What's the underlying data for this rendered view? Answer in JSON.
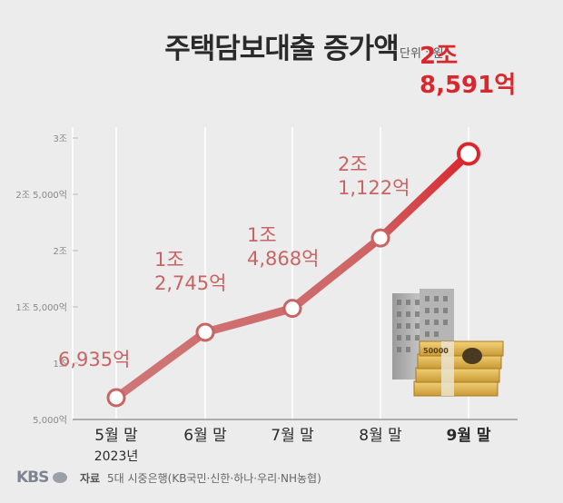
{
  "title": "주택담보대출 증가액",
  "unit": "단위 : 원",
  "chart_data": {
    "type": "line",
    "title": "주택담보대출 증가액",
    "categories": [
      "5월 말",
      "6월 말",
      "7월 말",
      "8월 말",
      "9월 말"
    ],
    "category_sublabels": [
      "2023년",
      "",
      "",
      "",
      ""
    ],
    "values": [
      693500000000,
      1274500000000,
      1486800000000,
      2112200000000,
      2859100000000
    ],
    "value_labels": [
      [
        "6,935억"
      ],
      [
        "1조",
        "2,745억"
      ],
      [
        "1조",
        "4,868억"
      ],
      [
        "2조",
        "1,122억"
      ],
      [
        "2조",
        "8,591억"
      ]
    ],
    "yticks": [
      500000000000,
      1000000000000,
      1500000000000,
      2000000000000,
      2500000000000,
      3000000000000
    ],
    "ytick_labels": [
      "5,000억",
      "1조",
      "1조 5,000억",
      "2조",
      "2조 5,000억",
      "3조"
    ],
    "ylim": [
      500000000000,
      3000000000000
    ],
    "grid": "vertical",
    "colors": {
      "line": "#c96464",
      "line_end": "#d9272e",
      "marker_fill": "#ffffff",
      "label": "#c96464",
      "label_last": "#d9272e"
    }
  },
  "footer": {
    "logo": "KBS",
    "source_label": "자료",
    "source_text": "5대 시중은행(KB국민·신한·하나·우리·NH농협)"
  },
  "illustration": {
    "icons": [
      "building-icon",
      "money-bundle-icon"
    ],
    "banknote_text": "50000"
  }
}
